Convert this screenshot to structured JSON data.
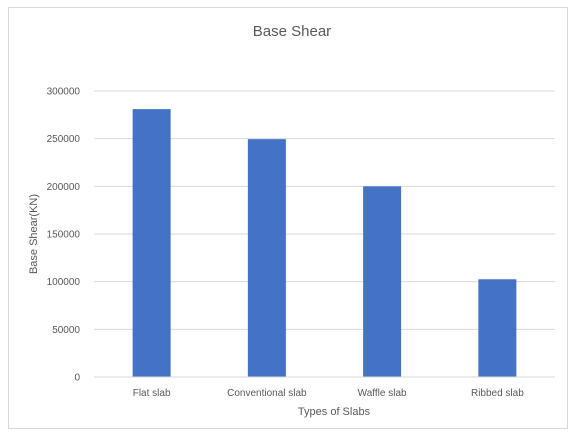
{
  "chart_data": {
    "type": "bar",
    "title": "Base Shear",
    "xlabel": "Types of Slabs",
    "ylabel": "Base Shear(KN)",
    "categories": [
      "Flat slab",
      "Conventional slab",
      "Waffle slab",
      "Ribbed slab"
    ],
    "values": [
      281000,
      249500,
      200000,
      102500
    ],
    "ylim": [
      0,
      300000
    ],
    "yticks": [
      0,
      50000,
      100000,
      150000,
      200000,
      250000,
      300000
    ],
    "grid": true,
    "legend": "none",
    "bar_color": "#4472C4",
    "grid_color": "#d9d9d9"
  }
}
